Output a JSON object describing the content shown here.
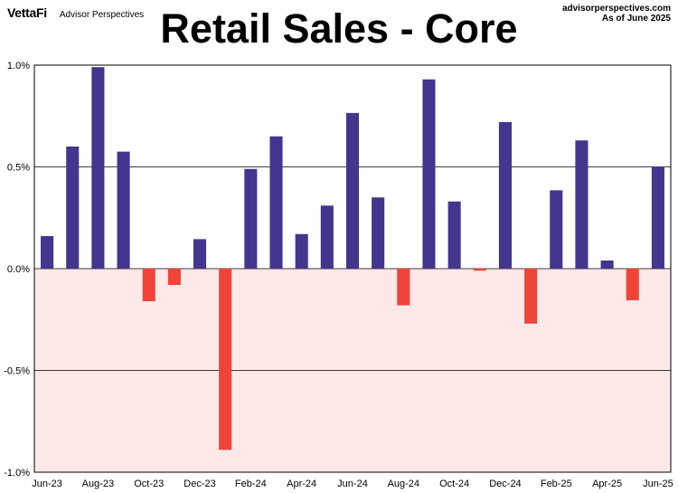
{
  "header": {
    "brand_logo": "VettaFi",
    "brand_name": "Advisor Perspectives",
    "source": "advisorperspectives.com",
    "as_of": "As of June 2025"
  },
  "chart_data": {
    "type": "bar",
    "title": "Retail Sales - Core",
    "categories": [
      "Jun-23",
      "Jul-23",
      "Aug-23",
      "Sep-23",
      "Oct-23",
      "Nov-23",
      "Dec-23",
      "Jan-24",
      "Feb-24",
      "Mar-24",
      "Apr-24",
      "May-24",
      "Jun-24",
      "Jul-24",
      "Aug-24",
      "Sep-24",
      "Oct-24",
      "Nov-24",
      "Dec-24",
      "Jan-25",
      "Feb-25",
      "Mar-25",
      "Apr-25",
      "May-25",
      "Jun-25"
    ],
    "x_tick_labels": [
      "Jun-23",
      "Aug-23",
      "Oct-23",
      "Dec-23",
      "Feb-24",
      "Apr-24",
      "Jun-24",
      "Aug-24",
      "Oct-24",
      "Dec-24",
      "Feb-25",
      "Apr-25",
      "Jun-25"
    ],
    "values": [
      0.16,
      0.6,
      0.99,
      0.575,
      -0.16,
      -0.08,
      0.145,
      -0.89,
      0.49,
      0.65,
      0.17,
      0.31,
      0.765,
      0.35,
      -0.18,
      0.93,
      0.33,
      -0.01,
      0.72,
      -0.27,
      0.385,
      0.63,
      0.04,
      -0.155,
      0.5
    ],
    "ylim": [
      -1.0,
      1.0
    ],
    "y_ticks": [
      1.0,
      0.5,
      0.0,
      -0.5,
      -1.0
    ],
    "y_tick_labels": [
      "1.0%",
      "0.5%",
      "0.0%",
      "-0.5%",
      "-1.0%"
    ],
    "grid": true,
    "colors": {
      "positive": "#44358e",
      "negative": "#f0433a",
      "negative_region": "#ffe8e8"
    }
  }
}
